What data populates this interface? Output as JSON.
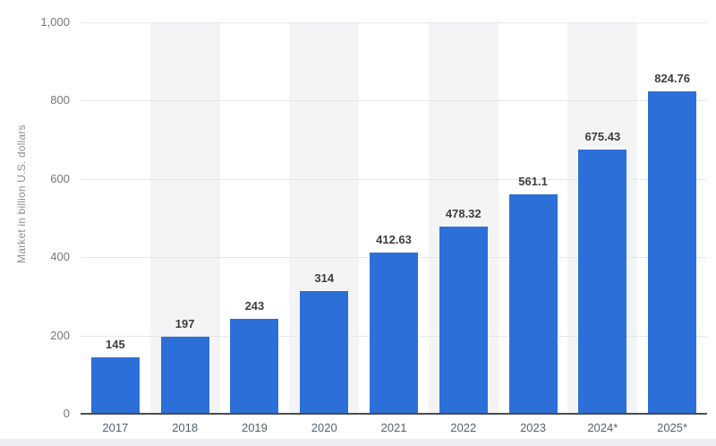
{
  "chart_data": {
    "type": "bar",
    "categories": [
      "2017",
      "2018",
      "2019",
      "2020",
      "2021",
      "2022",
      "2023",
      "2024*",
      "2025*"
    ],
    "values": [
      145,
      197,
      243,
      314,
      412.63,
      478.32,
      561.1,
      675.43,
      824.76
    ],
    "value_labels": [
      "145",
      "197",
      "243",
      "314",
      "412.63",
      "478.32",
      "561.1",
      "675.43",
      "824.76"
    ],
    "title": "",
    "xlabel": "",
    "ylabel": "Market in billion U.S. dollars",
    "ylim": [
      0,
      1000
    ],
    "yticks": [
      0,
      200,
      400,
      600,
      800,
      1000
    ],
    "ytick_labels": [
      "0",
      "200",
      "400",
      "600",
      "800",
      "1,000"
    ],
    "grid": "horizontal",
    "legend": "none",
    "stripes": "alternating columns starting at second category"
  },
  "colors": {
    "bar": "#2D6FD8",
    "stripe": "#F4F4F6",
    "gridline": "#E7E7E7",
    "axis_line": "#4C4C4C",
    "value_label": "#3D3D3D",
    "xtick_label": "#55606B",
    "ytick_label": "#767676",
    "ylabel": "#8A9096",
    "footer_strip": "#EEEEF0",
    "background": "#FFFFFF"
  }
}
